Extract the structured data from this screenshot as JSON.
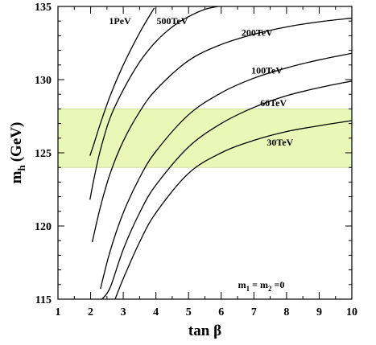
{
  "chart_data": {
    "type": "line",
    "xlabel": "tan β",
    "ylabel_main": "m",
    "ylabel_sub": "h",
    "ylabel_unit": "(GeV)",
    "xlim": [
      1,
      10
    ],
    "ylim": [
      115,
      135
    ],
    "x_ticks": [
      1,
      2,
      3,
      4,
      5,
      6,
      7,
      8,
      9,
      10
    ],
    "y_ticks": [
      115,
      120,
      125,
      130,
      135
    ],
    "grid": false,
    "band": {
      "y_low": 124.0,
      "y_high": 128.0,
      "color": "#e9f8b6"
    },
    "annotation": {
      "m1": "m",
      "sub1": "1",
      "eq1": " = m",
      "sub2": "2",
      "eq2": " =0"
    },
    "colors": {
      "line": "#000000",
      "band": "#e9f8b6"
    },
    "series": [
      {
        "name": "1PeV",
        "points": [
          [
            1.98,
            124.8
          ],
          [
            2.1,
            125.6
          ],
          [
            2.3,
            127.0
          ],
          [
            2.6,
            128.9
          ],
          [
            3.0,
            131.0
          ],
          [
            3.5,
            133.2
          ],
          [
            3.95,
            134.9
          ]
        ]
      },
      {
        "name": "500TeV",
        "points": [
          [
            1.98,
            121.8
          ],
          [
            2.1,
            123.2
          ],
          [
            2.3,
            125.2
          ],
          [
            2.6,
            127.4
          ],
          [
            3.0,
            129.3
          ],
          [
            3.5,
            131.2
          ],
          [
            4.0,
            132.6
          ],
          [
            4.5,
            133.6
          ],
          [
            5.0,
            134.3
          ],
          [
            5.5,
            134.8
          ],
          [
            5.9,
            135.0
          ]
        ]
      },
      {
        "name": "200TeV",
        "points": [
          [
            2.05,
            118.9
          ],
          [
            2.3,
            121.3
          ],
          [
            2.6,
            123.6
          ],
          [
            3.0,
            125.8
          ],
          [
            3.5,
            127.8
          ],
          [
            4.0,
            129.3
          ],
          [
            5.0,
            131.3
          ],
          [
            6.0,
            132.4
          ],
          [
            7.0,
            133.1
          ],
          [
            8.0,
            133.6
          ],
          [
            9.0,
            133.95
          ],
          [
            10.0,
            134.2
          ]
        ]
      },
      {
        "name": "100TeV",
        "points": [
          [
            2.3,
            115.7
          ],
          [
            2.6,
            118.3
          ],
          [
            3.0,
            120.9
          ],
          [
            3.5,
            123.3
          ],
          [
            4.0,
            125.1
          ],
          [
            5.0,
            127.6
          ],
          [
            6.0,
            129.1
          ],
          [
            7.0,
            130.1
          ],
          [
            8.0,
            130.8
          ],
          [
            9.0,
            131.35
          ],
          [
            10.0,
            131.8
          ]
        ]
      },
      {
        "name": "60TeV",
        "points": [
          [
            2.35,
            115.0
          ],
          [
            2.6,
            115.8
          ],
          [
            3.0,
            118.4
          ],
          [
            3.5,
            120.9
          ],
          [
            4.0,
            122.8
          ],
          [
            5.0,
            125.4
          ],
          [
            6.0,
            127.0
          ],
          [
            7.0,
            128.1
          ],
          [
            8.0,
            128.9
          ],
          [
            9.0,
            129.45
          ],
          [
            10.0,
            129.9
          ]
        ]
      },
      {
        "name": "30TeV",
        "points": [
          [
            2.75,
            115.0
          ],
          [
            3.0,
            116.4
          ],
          [
            3.5,
            118.9
          ],
          [
            4.0,
            120.9
          ],
          [
            5.0,
            123.6
          ],
          [
            6.0,
            125.0
          ],
          [
            7.0,
            125.85
          ],
          [
            8.0,
            126.45
          ],
          [
            9.0,
            126.85
          ],
          [
            10.0,
            127.2
          ]
        ]
      }
    ],
    "curve_labels": [
      {
        "text": "1PeV",
        "x": 2.9,
        "y": 133.8
      },
      {
        "text": "500TeV",
        "x": 4.5,
        "y": 133.8
      },
      {
        "text": "200TeV",
        "x": 7.1,
        "y": 133.0
      },
      {
        "text": "100TeV",
        "x": 7.4,
        "y": 130.4
      },
      {
        "text": "60TeV",
        "x": 7.6,
        "y": 128.2
      },
      {
        "text": "30TeV",
        "x": 7.8,
        "y": 125.5
      }
    ],
    "annotation_pos": {
      "x": 7.6,
      "y": 116.0
    }
  }
}
